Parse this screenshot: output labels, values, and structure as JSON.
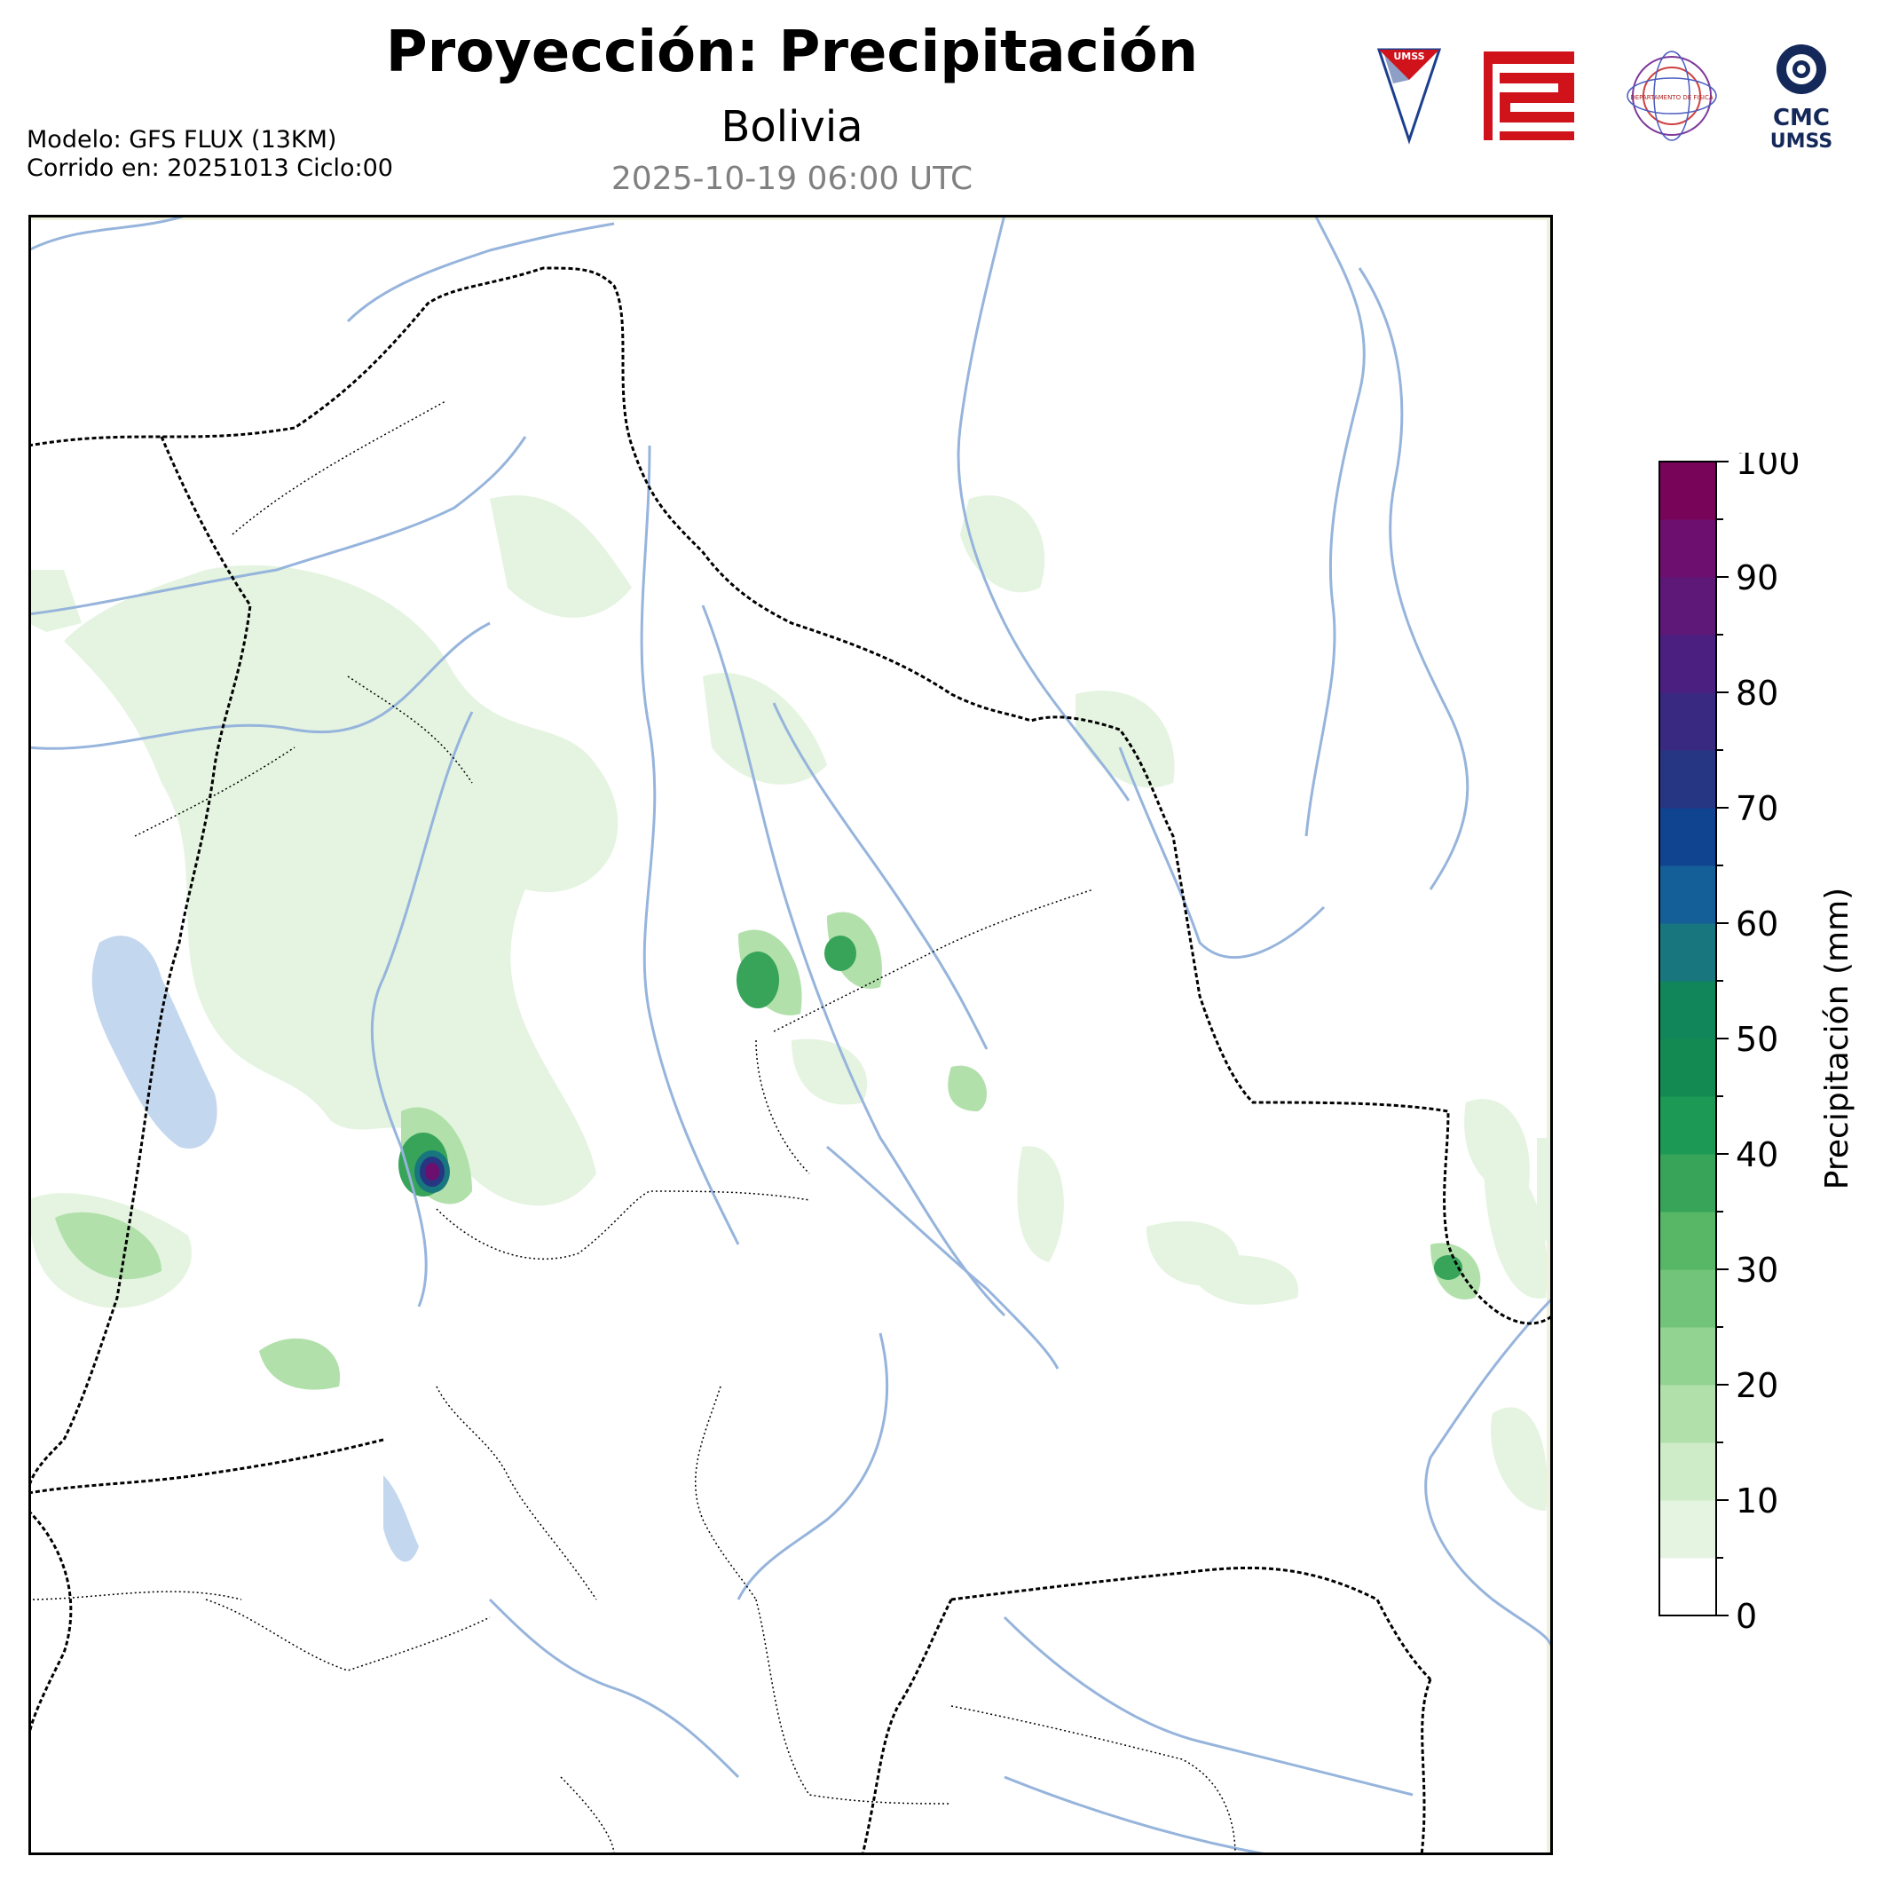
{
  "header": {
    "title": "Proyección: Precipitación",
    "region": "Bolivia",
    "valid_time": "2025-10-19 06:00 UTC",
    "model": "Modelo: GFS FLUX (13KM)",
    "run": "Corrido en: 20251013 Ciclo:00"
  },
  "logos": {
    "umss_shield": "UMSS",
    "physics_seal": "DEPARTAMENTO DE FISICA",
    "cmc_top": "CMC",
    "cmc_bottom": "UMSS"
  },
  "map": {
    "land_color": "#ffffff",
    "river_color": "#96b4dc",
    "lake_color": "#c3d7ee",
    "border_color": "#000000"
  },
  "colorbar": {
    "label": "Precipitación (mm)",
    "ticks": [
      "0",
      "10",
      "20",
      "30",
      "40",
      "50",
      "60",
      "70",
      "80",
      "90",
      "100"
    ],
    "min": 0,
    "max": 100,
    "step": 5,
    "colors": [
      "#ffffff",
      "#e4f4e0",
      "#cfecc8",
      "#b1e0ab",
      "#92d392",
      "#72c47a",
      "#57b767",
      "#37a45a",
      "#1c9a55",
      "#138a52",
      "#11865a",
      "#17767e",
      "#155f98",
      "#104390",
      "#273682",
      "#3a2980",
      "#4a1f80",
      "#5d1878",
      "#6d0f6e",
      "#780459"
    ]
  },
  "precip_cells": [
    {
      "lon": -67.1,
      "lat": -16.1,
      "mm": 85
    },
    {
      "lon": -64.4,
      "lat": -13.5,
      "mm": 45
    },
    {
      "lon": -63.9,
      "lat": -13.1,
      "mm": 35
    },
    {
      "lon": -62.3,
      "lat": -13.9,
      "mm": 20
    },
    {
      "lon": -59.5,
      "lat": -16.5,
      "mm": 35
    },
    {
      "lon": -68.8,
      "lat": -16.5,
      "mm": 25
    },
    {
      "lon": -67.6,
      "lat": -17.7,
      "mm": 20
    }
  ]
}
